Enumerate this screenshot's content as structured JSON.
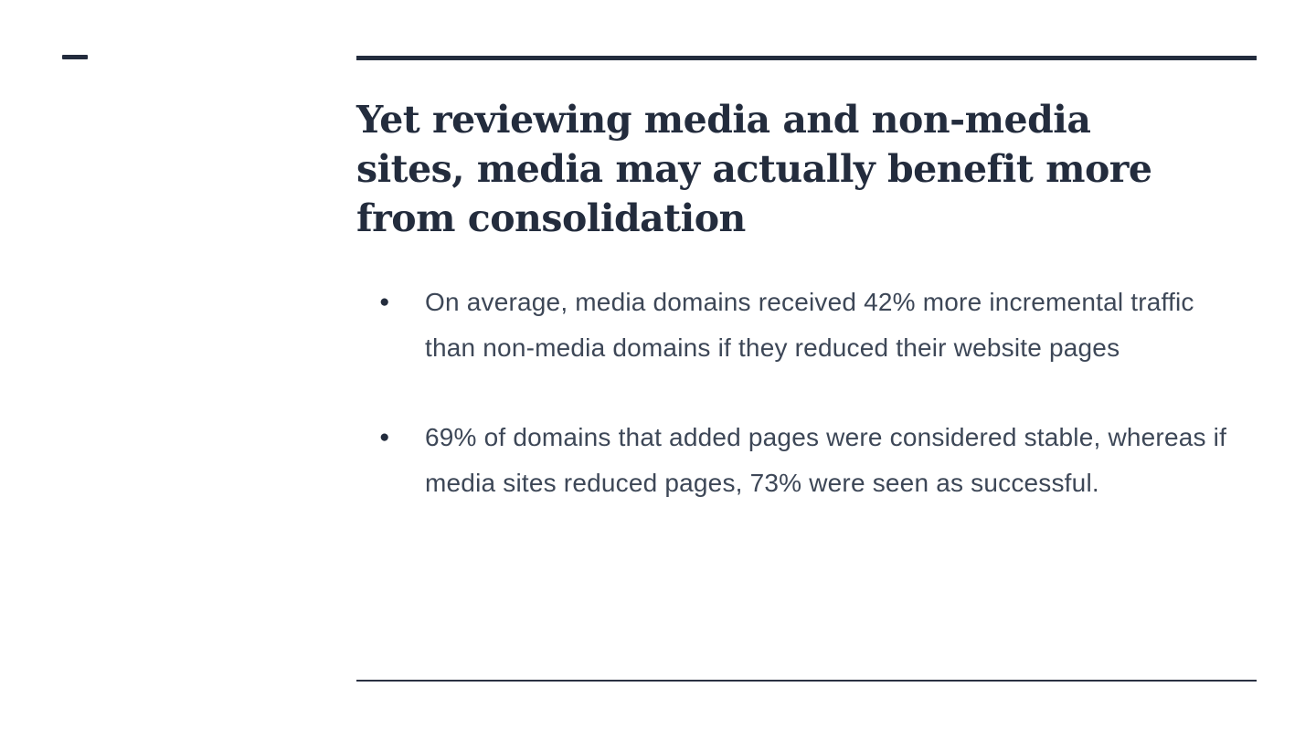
{
  "slide": {
    "title": "Yet reviewing media and non-media sites, media may actually benefit more from consolidation",
    "bullet_marker": "●",
    "bullets": [
      "On average, media domains received 42% more incremental traffic than non-media domains if they reduced their website pages",
      "69% of domains that added pages were considered stable, whereas if media sites reduced pages, 73% were seen as successful."
    ],
    "colors": {
      "heading": "#232c3d",
      "body": "#3d4757",
      "rule": "#232c3d",
      "background": "#ffffff"
    }
  }
}
